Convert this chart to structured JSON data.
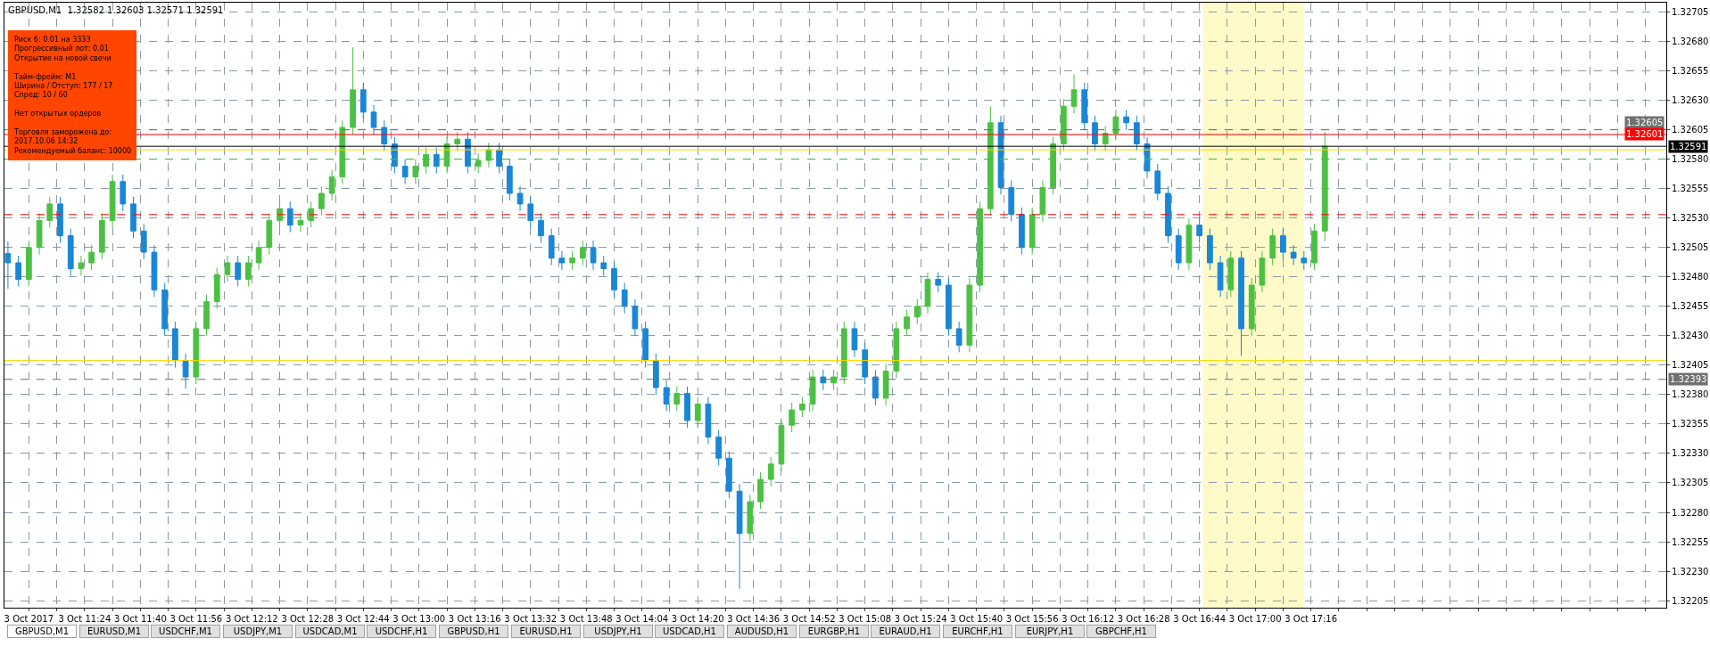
{
  "chart_data": {
    "type": "candlestick",
    "title": "GBPUSD,M1  1.32582 1.32603 1.32571 1.32591",
    "x": [
      "2017-10-03T11:02",
      "2017-10-03T11:05",
      "2017-10-03T11:08",
      "2017-10-03T11:11",
      "2017-10-03T11:14",
      "2017-10-03T11:17",
      "2017-10-03T11:20",
      "2017-10-03T11:23",
      "2017-10-03T11:26",
      "2017-10-03T11:29",
      "2017-10-03T11:32",
      "2017-10-03T11:35",
      "2017-10-03T11:38",
      "2017-10-03T11:41",
      "2017-10-03T11:44",
      "2017-10-03T11:47",
      "2017-10-03T11:50",
      "2017-10-03T11:53",
      "2017-10-03T11:56",
      "2017-10-03T11:59",
      "2017-10-03T12:02",
      "2017-10-03T12:05",
      "2017-10-03T12:08",
      "2017-10-03T12:11",
      "2017-10-03T12:14",
      "2017-10-03T12:17",
      "2017-10-03T12:20",
      "2017-10-03T12:23",
      "2017-10-03T12:26",
      "2017-10-03T12:29",
      "2017-10-03T12:32",
      "2017-10-03T12:35",
      "2017-10-03T12:38",
      "2017-10-03T12:41",
      "2017-10-03T12:44",
      "2017-10-03T12:47",
      "2017-10-03T12:50",
      "2017-10-03T12:53",
      "2017-10-03T12:56",
      "2017-10-03T12:59",
      "2017-10-03T13:02",
      "2017-10-03T13:05",
      "2017-10-03T13:08",
      "2017-10-03T13:11",
      "2017-10-03T13:14",
      "2017-10-03T13:17",
      "2017-10-03T13:20",
      "2017-10-03T13:23",
      "2017-10-03T13:26",
      "2017-10-03T13:29",
      "2017-10-03T13:32",
      "2017-10-03T13:35",
      "2017-10-03T13:38",
      "2017-10-03T13:41",
      "2017-10-03T13:44",
      "2017-10-03T13:47",
      "2017-10-03T13:50",
      "2017-10-03T13:53",
      "2017-10-03T13:56",
      "2017-10-03T13:59",
      "2017-10-03T14:02",
      "2017-10-03T14:05",
      "2017-10-03T14:08",
      "2017-10-03T14:11",
      "2017-10-03T14:14",
      "2017-10-03T14:17",
      "2017-10-03T14:20",
      "2017-10-03T14:23",
      "2017-10-03T14:26",
      "2017-10-03T14:29",
      "2017-10-03T14:32",
      "2017-10-03T14:35",
      "2017-10-03T14:38",
      "2017-10-03T14:41",
      "2017-10-03T14:44",
      "2017-10-03T14:47",
      "2017-10-03T14:50",
      "2017-10-03T14:53",
      "2017-10-03T14:56",
      "2017-10-03T14:59",
      "2017-10-03T15:02",
      "2017-10-03T15:05",
      "2017-10-03T15:08",
      "2017-10-03T15:11",
      "2017-10-03T15:14",
      "2017-10-03T15:17",
      "2017-10-03T15:20",
      "2017-10-03T15:23",
      "2017-10-03T15:26",
      "2017-10-03T15:29",
      "2017-10-03T15:32",
      "2017-10-03T15:35",
      "2017-10-03T15:38",
      "2017-10-03T15:41",
      "2017-10-03T15:44",
      "2017-10-03T15:47",
      "2017-10-03T15:50",
      "2017-10-03T15:53",
      "2017-10-03T15:56",
      "2017-10-03T15:59",
      "2017-10-03T16:02",
      "2017-10-03T16:05",
      "2017-10-03T16:08",
      "2017-10-03T16:11",
      "2017-10-03T16:14",
      "2017-10-03T16:17",
      "2017-10-03T16:20",
      "2017-10-03T16:23",
      "2017-10-03T16:26",
      "2017-10-03T16:29",
      "2017-10-03T16:32",
      "2017-10-03T16:35",
      "2017-10-03T16:38",
      "2017-10-03T16:41",
      "2017-10-03T16:44",
      "2017-10-03T16:47",
      "2017-10-03T16:50",
      "2017-10-03T16:53",
      "2017-10-03T16:56",
      "2017-10-03T16:59",
      "2017-10-03T17:02",
      "2017-10-03T17:05",
      "2017-10-03T17:08",
      "2017-10-03T17:11",
      "2017-10-03T17:14",
      "2017-10-03T17:17",
      "2017-10-03T17:20"
    ],
    "ohlc": [
      [
        1.325,
        1.3251,
        1.3247,
        1.32492
      ],
      [
        1.32492,
        1.32498,
        1.32472,
        1.32478
      ],
      [
        1.32478,
        1.32511,
        1.32472,
        1.32505
      ],
      [
        1.32505,
        1.32534,
        1.32499,
        1.32528
      ],
      [
        1.32528,
        1.32548,
        1.32522,
        1.32542
      ],
      [
        1.32542,
        1.32548,
        1.32509,
        1.32515
      ],
      [
        1.32515,
        1.32521,
        1.32481,
        1.32487
      ],
      [
        1.32487,
        1.32498,
        1.32481,
        1.32492
      ],
      [
        1.32492,
        1.32507,
        1.32486,
        1.32501
      ],
      [
        1.32501,
        1.32534,
        1.32495,
        1.32528
      ],
      [
        1.32528,
        1.32567,
        1.32522,
        1.32561
      ],
      [
        1.32561,
        1.32567,
        1.32536,
        1.32542
      ],
      [
        1.32542,
        1.32548,
        1.32513,
        1.32519
      ],
      [
        1.32519,
        1.32525,
        1.32495,
        1.32501
      ],
      [
        1.32501,
        1.32507,
        1.32463,
        1.32469
      ],
      [
        1.32469,
        1.32475,
        1.3243,
        1.32436
      ],
      [
        1.32436,
        1.32442,
        1.32403,
        1.32409
      ],
      [
        1.32409,
        1.32415,
        1.32385,
        1.32395
      ],
      [
        1.32395,
        1.32442,
        1.32389,
        1.32436
      ],
      [
        1.32436,
        1.32465,
        1.3243,
        1.32459
      ],
      [
        1.32459,
        1.32488,
        1.32453,
        1.32482
      ],
      [
        1.32482,
        1.32498,
        1.32476,
        1.32492
      ],
      [
        1.32492,
        1.32498,
        1.32472,
        1.32478
      ],
      [
        1.32478,
        1.32498,
        1.32472,
        1.32492
      ],
      [
        1.32492,
        1.32511,
        1.32486,
        1.32505
      ],
      [
        1.32505,
        1.32534,
        1.32499,
        1.32528
      ],
      [
        1.32528,
        1.32544,
        1.32522,
        1.32538
      ],
      [
        1.32538,
        1.32544,
        1.32518,
        1.32524
      ],
      [
        1.32524,
        1.32534,
        1.32518,
        1.32528
      ],
      [
        1.32528,
        1.32544,
        1.32522,
        1.32538
      ],
      [
        1.32538,
        1.32557,
        1.32532,
        1.32551
      ],
      [
        1.32551,
        1.32571,
        1.32545,
        1.32565
      ],
      [
        1.32565,
        1.32613,
        1.32559,
        1.32607
      ],
      [
        1.32607,
        1.32675,
        1.32601,
        1.32639
      ],
      [
        1.32639,
        1.32645,
        1.32614,
        1.3262
      ],
      [
        1.3262,
        1.32626,
        1.32601,
        1.32607
      ],
      [
        1.32607,
        1.32613,
        1.32587,
        1.32593
      ],
      [
        1.32593,
        1.32599,
        1.32568,
        1.32574
      ],
      [
        1.32574,
        1.3258,
        1.32559,
        1.32565
      ],
      [
        1.32565,
        1.3258,
        1.32559,
        1.32574
      ],
      [
        1.32574,
        1.3259,
        1.32568,
        1.32584
      ],
      [
        1.32584,
        1.3259,
        1.32568,
        1.32574
      ],
      [
        1.32574,
        1.32599,
        1.32568,
        1.32593
      ],
      [
        1.32593,
        1.32603,
        1.32587,
        1.32597
      ],
      [
        1.32597,
        1.32603,
        1.32568,
        1.32574
      ],
      [
        1.32574,
        1.32585,
        1.32568,
        1.32579
      ],
      [
        1.32579,
        1.32594,
        1.32573,
        1.32588
      ],
      [
        1.32588,
        1.32594,
        1.32568,
        1.32574
      ],
      [
        1.32574,
        1.3258,
        1.32545,
        1.32551
      ],
      [
        1.32551,
        1.32557,
        1.32536,
        1.32542
      ],
      [
        1.32542,
        1.32548,
        1.32522,
        1.32528
      ],
      [
        1.32528,
        1.32534,
        1.32509,
        1.32515
      ],
      [
        1.32515,
        1.32521,
        1.3249,
        1.32496
      ],
      [
        1.32496,
        1.32502,
        1.32486,
        1.32492
      ],
      [
        1.32492,
        1.32502,
        1.32486,
        1.32496
      ],
      [
        1.32496,
        1.32511,
        1.3249,
        1.32505
      ],
      [
        1.32505,
        1.32511,
        1.32486,
        1.32492
      ],
      [
        1.32492,
        1.32498,
        1.32481,
        1.32487
      ],
      [
        1.32487,
        1.32493,
        1.32463,
        1.32469
      ],
      [
        1.32469,
        1.32475,
        1.32449,
        1.32455
      ],
      [
        1.32455,
        1.32461,
        1.3243,
        1.32436
      ],
      [
        1.32436,
        1.32442,
        1.32403,
        1.32409
      ],
      [
        1.32409,
        1.32415,
        1.3238,
        1.32386
      ],
      [
        1.32386,
        1.32392,
        1.32366,
        1.32372
      ],
      [
        1.32372,
        1.32387,
        1.32366,
        1.32381
      ],
      [
        1.32381,
        1.32387,
        1.32352,
        1.32358
      ],
      [
        1.32358,
        1.32378,
        1.32352,
        1.32372
      ],
      [
        1.32372,
        1.32378,
        1.32338,
        1.32344
      ],
      [
        1.32344,
        1.3235,
        1.3232,
        1.32326
      ],
      [
        1.32326,
        1.32332,
        1.32292,
        1.32298
      ],
      [
        1.32298,
        1.32304,
        1.32215,
        1.32262
      ],
      [
        1.32262,
        1.32295,
        1.32256,
        1.32289
      ],
      [
        1.32289,
        1.32314,
        1.32283,
        1.32308
      ],
      [
        1.32308,
        1.32327,
        1.32302,
        1.32321
      ],
      [
        1.32321,
        1.3236,
        1.32315,
        1.32354
      ],
      [
        1.32354,
        1.32373,
        1.32348,
        1.32367
      ],
      [
        1.32367,
        1.32378,
        1.32361,
        1.32372
      ],
      [
        1.32372,
        1.32401,
        1.32366,
        1.32395
      ],
      [
        1.32395,
        1.32401,
        1.32384,
        1.3239
      ],
      [
        1.3239,
        1.32401,
        1.32384,
        1.32395
      ],
      [
        1.32395,
        1.32442,
        1.32389,
        1.32436
      ],
      [
        1.32436,
        1.32442,
        1.32412,
        1.32418
      ],
      [
        1.32418,
        1.32424,
        1.32389,
        1.32395
      ],
      [
        1.32395,
        1.32401,
        1.32371,
        1.32377
      ],
      [
        1.32377,
        1.32406,
        1.32371,
        1.324
      ],
      [
        1.324,
        1.32442,
        1.32394,
        1.32436
      ],
      [
        1.32436,
        1.32452,
        1.3243,
        1.32446
      ],
      [
        1.32446,
        1.32461,
        1.3244,
        1.32455
      ],
      [
        1.32455,
        1.32484,
        1.32449,
        1.32478
      ],
      [
        1.32478,
        1.32484,
        1.32467,
        1.32473
      ],
      [
        1.32473,
        1.32479,
        1.3243,
        1.32436
      ],
      [
        1.32436,
        1.32442,
        1.32416,
        1.32422
      ],
      [
        1.32422,
        1.32479,
        1.32416,
        1.32473
      ],
      [
        1.32473,
        1.32544,
        1.32467,
        1.32538
      ],
      [
        1.32538,
        1.32625,
        1.32532,
        1.32611
      ],
      [
        1.32611,
        1.32617,
        1.3255,
        1.32556
      ],
      [
        1.32556,
        1.32562,
        1.32527,
        1.32533
      ],
      [
        1.32533,
        1.32539,
        1.32499,
        1.32505
      ],
      [
        1.32505,
        1.32539,
        1.32499,
        1.32533
      ],
      [
        1.32533,
        1.32562,
        1.32527,
        1.32556
      ],
      [
        1.32556,
        1.32599,
        1.3255,
        1.32593
      ],
      [
        1.32593,
        1.32631,
        1.32587,
        1.32625
      ],
      [
        1.32625,
        1.32652,
        1.32619,
        1.32639
      ],
      [
        1.32639,
        1.32645,
        1.32605,
        1.32611
      ],
      [
        1.32611,
        1.32617,
        1.32587,
        1.32593
      ],
      [
        1.32593,
        1.32608,
        1.32587,
        1.32602
      ],
      [
        1.32602,
        1.32622,
        1.32596,
        1.32616
      ],
      [
        1.32616,
        1.32622,
        1.32605,
        1.32611
      ],
      [
        1.32611,
        1.32617,
        1.32587,
        1.32593
      ],
      [
        1.32593,
        1.32599,
        1.32564,
        1.3257
      ],
      [
        1.3257,
        1.32576,
        1.32545,
        1.32551
      ],
      [
        1.32551,
        1.32557,
        1.32509,
        1.32515
      ],
      [
        1.32515,
        1.32521,
        1.32486,
        1.32492
      ],
      [
        1.32492,
        1.3253,
        1.32486,
        1.32524
      ],
      [
        1.32524,
        1.3253,
        1.32509,
        1.32515
      ],
      [
        1.32515,
        1.32521,
        1.32486,
        1.32492
      ],
      [
        1.32492,
        1.32498,
        1.32463,
        1.32469
      ],
      [
        1.32469,
        1.32502,
        1.32463,
        1.32496
      ],
      [
        1.32496,
        1.32502,
        1.32413,
        1.32436
      ],
      [
        1.32436,
        1.32479,
        1.3243,
        1.32473
      ],
      [
        1.32473,
        1.32502,
        1.32467,
        1.32496
      ],
      [
        1.32496,
        1.32521,
        1.3249,
        1.32515
      ],
      [
        1.32515,
        1.32521,
        1.32495,
        1.32501
      ],
      [
        1.32501,
        1.32507,
        1.3249,
        1.32496
      ],
      [
        1.32496,
        1.32502,
        1.32486,
        1.32492
      ],
      [
        1.32492,
        1.32525,
        1.32486,
        1.32519
      ],
      [
        1.32519,
        1.32603,
        1.3251,
        1.32591
      ]
    ],
    "colors": [
      "#1a86d6",
      "#1a86d6",
      "#4cc043",
      "#4cc043",
      "#4cc043",
      "#1a86d6",
      "#1a86d6",
      "#4cc043",
      "#4cc043",
      "#4cc043",
      "#4cc043",
      "#1a86d6",
      "#1a86d6",
      "#1a86d6",
      "#1a86d6",
      "#1a86d6",
      "#1a86d6",
      "#1a86d6",
      "#4cc043",
      "#4cc043",
      "#4cc043",
      "#4cc043",
      "#1a86d6",
      "#4cc043",
      "#4cc043",
      "#4cc043",
      "#4cc043",
      "#1a86d6",
      "#4cc043",
      "#4cc043",
      "#4cc043",
      "#4cc043",
      "#4cc043",
      "#4cc043",
      "#1a86d6",
      "#1a86d6",
      "#1a86d6",
      "#1a86d6",
      "#1a86d6",
      "#4cc043",
      "#4cc043",
      "#1a86d6",
      "#4cc043",
      "#4cc043",
      "#1a86d6",
      "#4cc043",
      "#4cc043",
      "#1a86d6",
      "#1a86d6",
      "#1a86d6",
      "#1a86d6",
      "#1a86d6",
      "#1a86d6",
      "#1a86d6",
      "#4cc043",
      "#4cc043",
      "#1a86d6",
      "#1a86d6",
      "#1a86d6",
      "#1a86d6",
      "#1a86d6",
      "#1a86d6",
      "#1a86d6",
      "#1a86d6",
      "#4cc043",
      "#1a86d6",
      "#4cc043",
      "#1a86d6",
      "#1a86d6",
      "#1a86d6",
      "#1a86d6",
      "#4cc043",
      "#4cc043",
      "#4cc043",
      "#4cc043",
      "#4cc043",
      "#4cc043",
      "#4cc043",
      "#1a86d6",
      "#4cc043",
      "#4cc043",
      "#1a86d6",
      "#1a86d6",
      "#1a86d6",
      "#4cc043",
      "#4cc043",
      "#4cc043",
      "#4cc043",
      "#4cc043",
      "#1a86d6",
      "#1a86d6",
      "#1a86d6",
      "#4cc043",
      "#4cc043",
      "#4cc043",
      "#1a86d6",
      "#1a86d6",
      "#1a86d6",
      "#4cc043",
      "#4cc043",
      "#4cc043",
      "#4cc043",
      "#4cc043",
      "#1a86d6",
      "#1a86d6",
      "#4cc043",
      "#4cc043",
      "#1a86d6",
      "#1a86d6",
      "#1a86d6",
      "#1a86d6",
      "#1a86d6",
      "#1a86d6",
      "#4cc043",
      "#1a86d6",
      "#1a86d6",
      "#1a86d6",
      "#4cc043",
      "#1a86d6",
      "#4cc043",
      "#4cc043",
      "#4cc043",
      "#1a86d6",
      "#1a86d6",
      "#1a86d6",
      "#4cc043",
      "#4cc043"
    ],
    "xlim": [
      "2017-10-03T11:01",
      "2017-10-03T18:58"
    ],
    "xticks": [
      {
        "value": "2017-10-03T11:08",
        "label": "3 Oct 2017"
      },
      {
        "value": "2017-10-03T11:16",
        "label": null
      },
      {
        "value": "2017-10-03T11:24",
        "label": "3 Oct 11:24"
      },
      {
        "value": "2017-10-03T11:32",
        "label": null
      },
      {
        "value": "2017-10-03T11:40",
        "label": "3 Oct 11:40"
      },
      {
        "value": "2017-10-03T11:48",
        "label": null
      },
      {
        "value": "2017-10-03T11:56",
        "label": "3 Oct 11:56"
      },
      {
        "value": "2017-10-03T12:04",
        "label": null
      },
      {
        "value": "2017-10-03T12:12",
        "label": "3 Oct 12:12"
      },
      {
        "value": "2017-10-03T12:20",
        "label": null
      },
      {
        "value": "2017-10-03T12:28",
        "label": "3 Oct 12:28"
      },
      {
        "value": "2017-10-03T12:36",
        "label": null
      },
      {
        "value": "2017-10-03T12:44",
        "label": "3 Oct 12:44"
      },
      {
        "value": "2017-10-03T12:52",
        "label": null
      },
      {
        "value": "2017-10-03T13:00",
        "label": "3 Oct 13:00"
      },
      {
        "value": "2017-10-03T13:08",
        "label": null
      },
      {
        "value": "2017-10-03T13:16",
        "label": "3 Oct 13:16"
      },
      {
        "value": "2017-10-03T13:24",
        "label": null
      },
      {
        "value": "2017-10-03T13:32",
        "label": "3 Oct 13:32"
      },
      {
        "value": "2017-10-03T13:40",
        "label": null
      },
      {
        "value": "2017-10-03T13:48",
        "label": "3 Oct 13:48"
      },
      {
        "value": "2017-10-03T13:56",
        "label": null
      },
      {
        "value": "2017-10-03T14:04",
        "label": "3 Oct 14:04"
      },
      {
        "value": "2017-10-03T14:12",
        "label": null
      },
      {
        "value": "2017-10-03T14:20",
        "label": "3 Oct 14:20"
      },
      {
        "value": "2017-10-03T14:28",
        "label": null
      },
      {
        "value": "2017-10-03T14:36",
        "label": "3 Oct 14:36"
      },
      {
        "value": "2017-10-03T14:44",
        "label": null
      },
      {
        "value": "2017-10-03T14:52",
        "label": "3 Oct 14:52"
      },
      {
        "value": "2017-10-03T15:00",
        "label": null
      },
      {
        "value": "2017-10-03T15:08",
        "label": "3 Oct 15:08"
      },
      {
        "value": "2017-10-03T15:16",
        "label": null
      },
      {
        "value": "2017-10-03T15:24",
        "label": "3 Oct 15:24"
      },
      {
        "value": "2017-10-03T15:32",
        "label": null
      },
      {
        "value": "2017-10-03T15:40",
        "label": "3 Oct 15:40"
      },
      {
        "value": "2017-10-03T15:48",
        "label": null
      },
      {
        "value": "2017-10-03T15:56",
        "label": "3 Oct 15:56"
      },
      {
        "value": "2017-10-03T16:04",
        "label": null
      },
      {
        "value": "2017-10-03T16:12",
        "label": "3 Oct 16:12"
      },
      {
        "value": "2017-10-03T16:20",
        "label": null
      },
      {
        "value": "2017-10-03T16:28",
        "label": "3 Oct 16:28"
      },
      {
        "value": "2017-10-03T16:36",
        "label": null
      },
      {
        "value": "2017-10-03T16:44",
        "label": "3 Oct 16:44"
      },
      {
        "value": "2017-10-03T16:52",
        "label": null
      },
      {
        "value": "2017-10-03T17:00",
        "label": "3 Oct 17:00"
      },
      {
        "value": "2017-10-03T17:08",
        "label": null
      },
      {
        "value": "2017-10-03T17:16",
        "label": "3 Oct 17:16"
      },
      {
        "value": "2017-10-03T17:24",
        "label": null
      },
      {
        "value": "2017-10-03T17:32",
        "label": null
      },
      {
        "value": "2017-10-03T17:40",
        "label": null
      },
      {
        "value": "2017-10-03T17:48",
        "label": null
      },
      {
        "value": "2017-10-03T17:56",
        "label": null
      },
      {
        "value": "2017-10-03T18:04",
        "label": null
      },
      {
        "value": "2017-10-03T18:12",
        "label": null
      },
      {
        "value": "2017-10-03T18:20",
        "label": null
      },
      {
        "value": "2017-10-03T18:28",
        "label": null
      },
      {
        "value": "2017-10-03T18:36",
        "label": null
      },
      {
        "value": "2017-10-03T18:44",
        "label": null
      },
      {
        "value": "2017-10-03T18:52",
        "label": null
      }
    ],
    "ylim": [
      1.32199,
      1.32713
    ],
    "yticks": [
      {
        "value": 1.32205,
        "label": "1.32205"
      },
      {
        "value": 1.3223,
        "label": "1.32230"
      },
      {
        "value": 1.32255,
        "label": "1.32255"
      },
      {
        "value": 1.3228,
        "label": "1.32280"
      },
      {
        "value": 1.32305,
        "label": "1.32305"
      },
      {
        "value": 1.3233,
        "label": "1.32330"
      },
      {
        "value": 1.32355,
        "label": "1.32355"
      },
      {
        "value": 1.3238,
        "label": "1.32380"
      },
      {
        "value": 1.32405,
        "label": "1.32405"
      },
      {
        "value": 1.3243,
        "label": "1.32430"
      },
      {
        "value": 1.32455,
        "label": "1.32455"
      },
      {
        "value": 1.3248,
        "label": "1.32480"
      },
      {
        "value": 1.32505,
        "label": "1.32505"
      },
      {
        "value": 1.3253,
        "label": "1.32530"
      },
      {
        "value": 1.32555,
        "label": "1.32555"
      },
      {
        "value": 1.3258,
        "label": "1.32580"
      },
      {
        "value": 1.32605,
        "label": "1.32605"
      },
      {
        "value": 1.3263,
        "label": "1.32630"
      },
      {
        "value": 1.32655,
        "label": "1.32655"
      },
      {
        "value": 1.3268,
        "label": "1.32680"
      },
      {
        "value": 1.32705,
        "label": "1.32705"
      }
    ],
    "grid": true,
    "ref_lines": [
      {
        "axis": "y",
        "value": 1.32605,
        "label": "1.32605",
        "color": "#707070",
        "line_style": "dashed"
      },
      {
        "axis": "y",
        "value": 1.32601,
        "label": "1.32601",
        "color": "#ff0000",
        "line_style": "solid"
      },
      {
        "axis": "y",
        "value": 1.32591,
        "label": "1.32591",
        "color": "#000000",
        "line_style": "solid"
      },
      {
        "axis": "y",
        "value": 1.32588,
        "color": "#ffd700",
        "line_style": "solid"
      },
      {
        "axis": "y",
        "value": 1.3258,
        "color": "#32cd32",
        "line_style": "dashed"
      },
      {
        "axis": "y",
        "value": 1.32533,
        "color": "#ff0000",
        "line_style": "dashed"
      },
      {
        "axis": "y",
        "value": 1.32409,
        "color": "#ffd700",
        "line_style": "solid"
      },
      {
        "axis": "y",
        "value": 1.32393,
        "label": "1.32393",
        "color": "#707070",
        "line_style": "dashed"
      }
    ],
    "bands": [
      {
        "axis": "x",
        "from": "2017-10-03T16:45",
        "to": "2017-10-03T17:14",
        "color": "#fffac8"
      }
    ],
    "annotations": [
      "Риск 6: 0.01 на 3333\nПрогрессивный лот: 0.01\nОткрытие на новой свечи\n\nТайм-фрейм: M1\nШирина / Отступ: 177 / 17\nСпред: 10 / 60\n\nНет открытых ордеров\n\nТорговля заморожена до:\n2017.10.06 14:32\nРекомендуемый баланс: 10000",
      "GBPUSD,M1",
      "EURUSD,M1",
      "USDCHF,M1",
      "USDJPY,M1",
      "USDCAD,M1",
      "USDCHF,H1",
      "GBPUSD,H1",
      "EURUSD,H1",
      "USDJPY,H1",
      "USDCAD,H1",
      "AUDUSD,H1",
      "EURGBP,H1",
      "EURAUD,H1",
      "EURCHF,H1",
      "EURJPY,H1",
      "GBPCHF,H1"
    ]
  }
}
